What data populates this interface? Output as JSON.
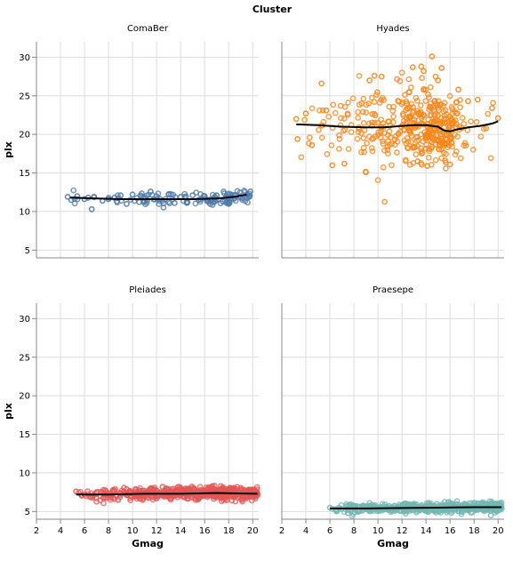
{
  "chart_data": {
    "type": "scatter",
    "header_title": "Cluster",
    "xlabel": "Gmag",
    "ylabel": "plx",
    "xlim": [
      2,
      20.5
    ],
    "ylim": [
      4,
      32
    ],
    "xticks": [
      2,
      4,
      6,
      8,
      10,
      12,
      14,
      16,
      18,
      20
    ],
    "yticks": [
      5,
      10,
      15,
      20,
      25,
      30
    ],
    "grid": true,
    "facets": [
      {
        "name": "ComaBer",
        "color": "#4c78a8",
        "spread": 0.45,
        "point_count": 110,
        "x_range": [
          4.5,
          19.8
        ],
        "points": [
          [
            4.6,
            11.9
          ],
          [
            4.9,
            11.5
          ],
          [
            5.4,
            12.0
          ],
          [
            6.0,
            11.6
          ],
          [
            6.3,
            11.8
          ],
          [
            6.6,
            10.3
          ],
          [
            6.8,
            11.9
          ],
          [
            7.5,
            11.4
          ],
          [
            8.0,
            11.6
          ],
          [
            8.5,
            11.8
          ],
          [
            9.0,
            12.1
          ],
          [
            9.5,
            11.0
          ],
          [
            10.0,
            12.2
          ],
          [
            11.0,
            11.3
          ],
          [
            11.5,
            12.6
          ],
          [
            12.0,
            12.0
          ],
          [
            12.5,
            11.4
          ],
          [
            13.0,
            12.2
          ],
          [
            13.5,
            11.1
          ],
          [
            14.0,
            11.9
          ],
          [
            14.5,
            11.2
          ],
          [
            15.0,
            12.1
          ],
          [
            15.5,
            11.5
          ],
          [
            16.0,
            12.0
          ],
          [
            16.5,
            11.4
          ],
          [
            17.0,
            12.1
          ],
          [
            17.5,
            11.3
          ],
          [
            18.0,
            11.0
          ],
          [
            18.5,
            12.1
          ],
          [
            19.0,
            11.8
          ],
          [
            19.8,
            12.6
          ]
        ],
        "trend": [
          [
            4.8,
            11.8
          ],
          [
            7.0,
            11.7
          ],
          [
            9.0,
            11.6
          ],
          [
            11.0,
            11.6
          ],
          [
            13.0,
            11.6
          ],
          [
            15.0,
            11.6
          ],
          [
            17.0,
            11.7
          ],
          [
            18.5,
            11.9
          ],
          [
            19.5,
            12.2
          ]
        ]
      },
      {
        "name": "Hyades",
        "color": "#f58518",
        "spread": 2.4,
        "point_count": 420,
        "x_range": [
          3.0,
          20.0
        ],
        "points": [
          [
            3.2,
            22.0
          ],
          [
            3.3,
            19.4
          ],
          [
            4.0,
            22.7
          ],
          [
            4.5,
            18.6
          ],
          [
            5.3,
            26.6
          ],
          [
            5.7,
            23.1
          ],
          [
            6.2,
            16.0
          ],
          [
            7.2,
            16.2
          ],
          [
            9.3,
            27.0
          ],
          [
            9.7,
            27.6
          ],
          [
            10.3,
            27.5
          ],
          [
            10.8,
            18.4
          ],
          [
            12.4,
            24.0
          ],
          [
            12.9,
            28.7
          ],
          [
            13.3,
            16.5
          ],
          [
            13.6,
            28.8
          ],
          [
            13.8,
            28.2
          ],
          [
            14.1,
            15.9
          ],
          [
            14.5,
            30.1
          ],
          [
            14.8,
            27.5
          ],
          [
            15.0,
            27.0
          ],
          [
            15.3,
            28.6
          ],
          [
            15.6,
            16.6
          ],
          [
            16.0,
            16.1
          ],
          [
            16.7,
            25.8
          ],
          [
            17.5,
            24.3
          ],
          [
            18.3,
            24.5
          ],
          [
            19.0,
            20.8
          ],
          [
            19.5,
            23.4
          ],
          [
            20.0,
            22.1
          ]
        ],
        "trend": [
          [
            3.2,
            21.3
          ],
          [
            5.0,
            21.2
          ],
          [
            7.0,
            21.0
          ],
          [
            9.0,
            20.9
          ],
          [
            10.5,
            20.9
          ],
          [
            12.0,
            21.1
          ],
          [
            13.0,
            21.2
          ],
          [
            14.0,
            21.2
          ],
          [
            15.0,
            21.0
          ],
          [
            15.5,
            20.5
          ],
          [
            16.0,
            20.4
          ],
          [
            16.5,
            20.6
          ],
          [
            17.5,
            20.9
          ],
          [
            18.5,
            21.1
          ],
          [
            19.5,
            21.4
          ],
          [
            20.0,
            21.7
          ]
        ]
      },
      {
        "name": "Pleiades",
        "color": "#e45756",
        "spread": 0.4,
        "point_count": 520,
        "x_range": [
          5.3,
          20.4
        ],
        "points": [
          [
            5.3,
            7.6
          ],
          [
            6.0,
            7.2
          ],
          [
            7.0,
            7.5
          ],
          [
            8.2,
            6.8
          ],
          [
            8.8,
            6.5
          ],
          [
            9.5,
            7.9
          ],
          [
            10.5,
            7.1
          ],
          [
            11.5,
            8.0
          ],
          [
            12.0,
            6.7
          ],
          [
            12.5,
            8.2
          ],
          [
            13.5,
            7.0
          ],
          [
            14.5,
            7.9
          ],
          [
            15.5,
            6.8
          ],
          [
            16.5,
            8.1
          ],
          [
            17.5,
            7.0
          ],
          [
            18.5,
            8.0
          ],
          [
            19.5,
            6.9
          ],
          [
            20.2,
            7.3
          ],
          [
            20.4,
            7.1
          ]
        ],
        "trend": [
          [
            5.3,
            7.2
          ],
          [
            8.0,
            7.2
          ],
          [
            11.0,
            7.3
          ],
          [
            14.0,
            7.3
          ],
          [
            17.0,
            7.4
          ],
          [
            20.4,
            7.3
          ]
        ]
      },
      {
        "name": "Praesepe",
        "color": "#72b7b2",
        "spread": 0.3,
        "point_count": 560,
        "x_range": [
          6.0,
          20.3
        ],
        "points": [
          [
            6.0,
            5.5
          ],
          [
            6.5,
            5.2
          ],
          [
            7.5,
            4.8
          ],
          [
            8.5,
            5.6
          ],
          [
            10.0,
            5.2
          ],
          [
            12.0,
            5.7
          ],
          [
            14.0,
            5.1
          ],
          [
            16.0,
            5.9
          ],
          [
            17.0,
            5.0
          ],
          [
            18.0,
            6.1
          ],
          [
            19.4,
            4.5
          ],
          [
            20.0,
            5.6
          ],
          [
            20.3,
            5.4
          ]
        ],
        "trend": [
          [
            6.0,
            5.4
          ],
          [
            9.0,
            5.4
          ],
          [
            12.0,
            5.45
          ],
          [
            15.0,
            5.5
          ],
          [
            18.0,
            5.55
          ],
          [
            20.3,
            5.55
          ]
        ]
      }
    ]
  }
}
